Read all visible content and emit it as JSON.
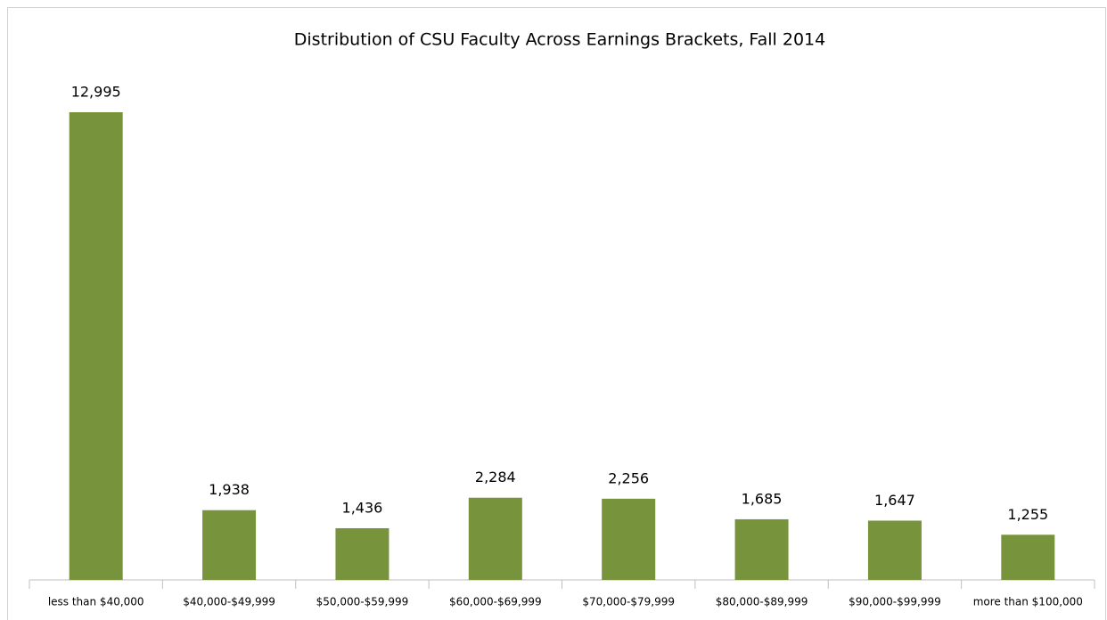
{
  "chart_data": {
    "type": "bar",
    "title": "Distribution of CSU Faculty Across Earnings Brackets, Fall 2014",
    "categories": [
      "less than $40,000",
      "$40,000-$49,999",
      "$50,000-$59,999",
      "$60,000-$69,999",
      "$70,000-$79,999",
      "$80,000-$89,999",
      "$90,000-$99,999",
      "more than $100,000"
    ],
    "values": [
      12995,
      1938,
      1436,
      2284,
      2256,
      1685,
      1647,
      1255
    ],
    "value_labels": [
      "12,995",
      "1,938",
      "1,436",
      "2,284",
      "2,256",
      "1,685",
      "1,647",
      "1,255"
    ],
    "color": "#77933c"
  }
}
